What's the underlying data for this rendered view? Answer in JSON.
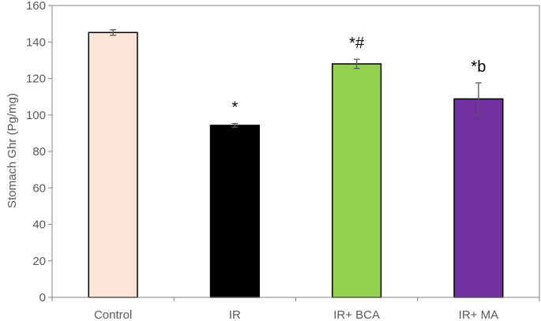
{
  "chart_data": {
    "type": "bar",
    "title": "",
    "xlabel": "",
    "ylabel": "Stomach Ghr (Pg/mg)",
    "ylim": [
      0,
      160
    ],
    "yticks": [
      0,
      20,
      40,
      60,
      80,
      100,
      120,
      140,
      160
    ],
    "grid": false,
    "legend": "none",
    "categories": [
      "Control",
      "IR",
      "IR+ BCA",
      "IR+ MA"
    ],
    "values": [
      145.2,
      94.3,
      128.0,
      108.8
    ],
    "errors": [
      1.5,
      1.0,
      2.5,
      8.8
    ],
    "annotations": [
      "",
      "*",
      "*#",
      "*b"
    ],
    "colors": [
      "#fbe5d6",
      "#000000",
      "#92d050",
      "#7030a0"
    ],
    "bar_edge_color": "#000000",
    "axis_color": "#808080"
  }
}
